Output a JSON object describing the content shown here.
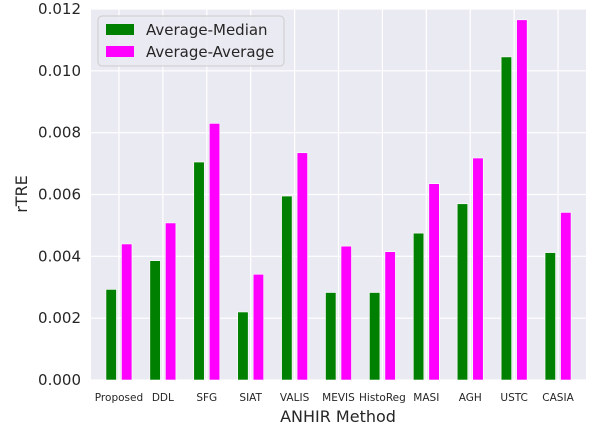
{
  "chart_data": {
    "type": "bar",
    "title": "",
    "xlabel": "ANHIR Method",
    "ylabel": "rTRE",
    "ylim": [
      0,
      0.012
    ],
    "yticks": [
      "0.000",
      "0.002",
      "0.004",
      "0.006",
      "0.008",
      "0.010",
      "0.012"
    ],
    "grid": true,
    "legend_position": "top-left",
    "categories": [
      "Proposed",
      "DDL",
      "SFG",
      "SIAT",
      "VALIS",
      "MEVIS",
      "HistoReg",
      "MASI",
      "AGH",
      "USTC",
      "CASIA"
    ],
    "series": [
      {
        "name": "Average-Median",
        "color": "#008000",
        "values": [
          0.00293,
          0.00386,
          0.00705,
          0.0022,
          0.00595,
          0.00283,
          0.00283,
          0.00475,
          0.0057,
          0.01045,
          0.00412
        ]
      },
      {
        "name": "Average-Average",
        "color": "#ff00ff",
        "values": [
          0.0044,
          0.00508,
          0.0083,
          0.00342,
          0.00735,
          0.00433,
          0.00415,
          0.00635,
          0.00718,
          0.01165,
          0.00542
        ]
      }
    ]
  }
}
